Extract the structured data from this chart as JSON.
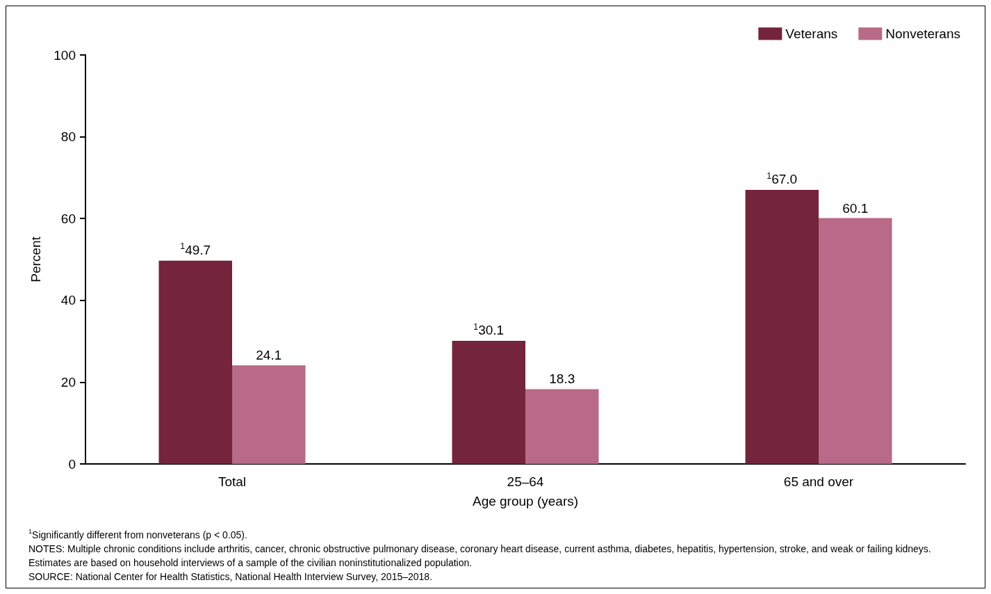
{
  "chart_data": {
    "type": "bar",
    "xlabel": "Age group (years)",
    "ylabel": "Percent",
    "categories": [
      "Total",
      "25–64",
      "65 and over"
    ],
    "series": [
      {
        "name": "Veterans",
        "color": "#74243c",
        "values": [
          49.7,
          30.1,
          67.0
        ],
        "value_labels": [
          "$^{1}$49.7",
          "$^{1}$30.1",
          "$^{1}$67.0"
        ]
      },
      {
        "name": "Nonveterans",
        "color": "#b86a86",
        "values": [
          24.1,
          18.3,
          60.1
        ],
        "value_labels": [
          "24.1",
          "18.3",
          "60.1"
        ]
      }
    ],
    "ylim": [
      0,
      100
    ],
    "yticks": [
      0,
      20,
      40,
      60,
      80,
      100
    ],
    "grid": false,
    "legend": "top right",
    "annotations": [
      "$^{1}$Significantly different from nonveterans (p < 0.05).",
      "NOTES: Multiple chronic conditions include arthritis, cancer, chronic obstructive pulmonary disease, coronary heart disease, current asthma, diabetes, hepatitis, hypertension, stroke, and weak or failing kidneys. Estimates are based on household interviews of a sample of the civilian noninstitutionalized population.",
      "SOURCE: National Center for Health Statistics, National Health Interview Survey, 2015–2018."
    ]
  }
}
